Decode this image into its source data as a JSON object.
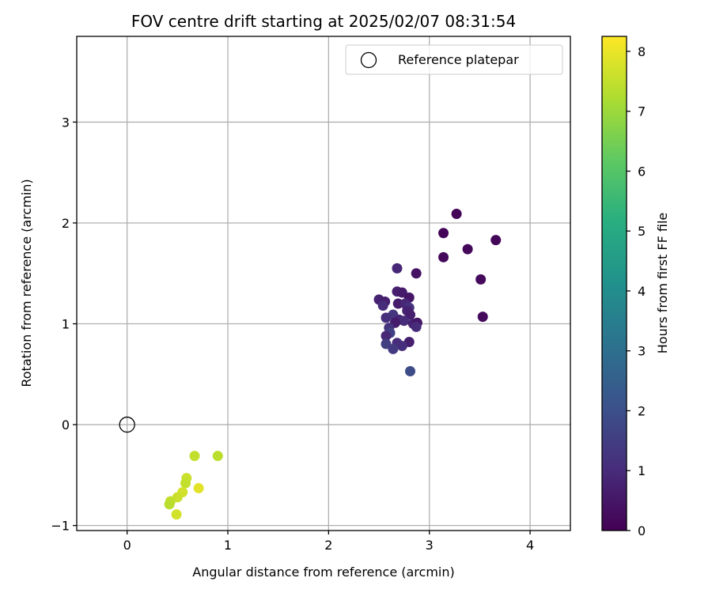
{
  "chart_data": {
    "type": "scatter",
    "title": "FOV centre drift starting at 2025/02/07 08:31:54",
    "xlabel": "Angular distance from reference (arcmin)",
    "ylabel": "Rotation from reference (arcmin)",
    "xlim": [
      -0.5,
      4.4
    ],
    "ylim": [
      -1.05,
      3.85
    ],
    "xticks": [
      0,
      1,
      2,
      3,
      4
    ],
    "yticks": [
      -1,
      0,
      1,
      2,
      3
    ],
    "xtick_labels": [
      "0",
      "1",
      "2",
      "3",
      "4"
    ],
    "ytick_labels": [
      "−1",
      "0",
      "1",
      "2",
      "3"
    ],
    "grid": true,
    "legend": {
      "placement": "top-right",
      "entries": [
        "Reference platepar"
      ]
    },
    "colorbar": {
      "label": "Hours from first FF file",
      "range": [
        0,
        8.25
      ],
      "ticks": [
        0,
        1,
        2,
        3,
        4,
        5,
        6,
        7,
        8
      ],
      "tick_labels": [
        "0",
        "1",
        "2",
        "3",
        "4",
        "5",
        "6",
        "7",
        "8"
      ],
      "colormap": "viridis"
    },
    "reference_point": {
      "name": "Reference platepar",
      "x": 0,
      "y": 0
    },
    "points": [
      {
        "x": 3.27,
        "y": 2.09,
        "hours": 0.05
      },
      {
        "x": 3.14,
        "y": 1.9,
        "hours": 0.1
      },
      {
        "x": 3.66,
        "y": 1.83,
        "hours": 0.12
      },
      {
        "x": 3.38,
        "y": 1.74,
        "hours": 0.15
      },
      {
        "x": 3.14,
        "y": 1.66,
        "hours": 0.18
      },
      {
        "x": 3.51,
        "y": 1.44,
        "hours": 0.2
      },
      {
        "x": 3.53,
        "y": 1.07,
        "hours": 0.22
      },
      {
        "x": 2.87,
        "y": 1.5,
        "hours": 0.4
      },
      {
        "x": 2.68,
        "y": 1.55,
        "hours": 0.9
      },
      {
        "x": 2.68,
        "y": 1.32,
        "hours": 0.7
      },
      {
        "x": 2.73,
        "y": 1.31,
        "hours": 0.6
      },
      {
        "x": 2.5,
        "y": 1.24,
        "hours": 0.8
      },
      {
        "x": 2.56,
        "y": 1.22,
        "hours": 0.7
      },
      {
        "x": 2.54,
        "y": 1.18,
        "hours": 1.0
      },
      {
        "x": 2.8,
        "y": 1.26,
        "hours": 0.5
      },
      {
        "x": 2.69,
        "y": 1.2,
        "hours": 0.6
      },
      {
        "x": 2.76,
        "y": 1.2,
        "hours": 0.9
      },
      {
        "x": 2.8,
        "y": 1.16,
        "hours": 1.2
      },
      {
        "x": 2.78,
        "y": 1.13,
        "hours": 0.8
      },
      {
        "x": 2.64,
        "y": 1.09,
        "hours": 1.3
      },
      {
        "x": 2.57,
        "y": 1.06,
        "hours": 1.1
      },
      {
        "x": 2.81,
        "y": 1.09,
        "hours": 0.7
      },
      {
        "x": 2.7,
        "y": 1.04,
        "hours": 0.9
      },
      {
        "x": 2.75,
        "y": 1.03,
        "hours": 1.0
      },
      {
        "x": 2.66,
        "y": 1.01,
        "hours": 0.6
      },
      {
        "x": 2.84,
        "y": 1.0,
        "hours": 0.8
      },
      {
        "x": 2.88,
        "y": 1.01,
        "hours": 0.5
      },
      {
        "x": 2.87,
        "y": 0.97,
        "hours": 1.0
      },
      {
        "x": 2.6,
        "y": 0.96,
        "hours": 1.2
      },
      {
        "x": 2.61,
        "y": 0.91,
        "hours": 1.6
      },
      {
        "x": 2.57,
        "y": 0.88,
        "hours": 0.9
      },
      {
        "x": 2.57,
        "y": 0.8,
        "hours": 1.5
      },
      {
        "x": 2.68,
        "y": 0.81,
        "hours": 1.0
      },
      {
        "x": 2.8,
        "y": 0.82,
        "hours": 0.7
      },
      {
        "x": 2.73,
        "y": 0.78,
        "hours": 1.1
      },
      {
        "x": 2.64,
        "y": 0.75,
        "hours": 1.4
      },
      {
        "x": 2.81,
        "y": 0.53,
        "hours": 1.9
      },
      {
        "x": 0.67,
        "y": -0.31,
        "hours": 7.5
      },
      {
        "x": 0.9,
        "y": -0.31,
        "hours": 7.4
      },
      {
        "x": 0.59,
        "y": -0.53,
        "hours": 7.6
      },
      {
        "x": 0.58,
        "y": -0.58,
        "hours": 7.5
      },
      {
        "x": 0.71,
        "y": -0.63,
        "hours": 7.9
      },
      {
        "x": 0.55,
        "y": -0.67,
        "hours": 7.7
      },
      {
        "x": 0.5,
        "y": -0.72,
        "hours": 7.6
      },
      {
        "x": 0.43,
        "y": -0.76,
        "hours": 7.5
      },
      {
        "x": 0.42,
        "y": -0.79,
        "hours": 7.4
      },
      {
        "x": 0.49,
        "y": -0.89,
        "hours": 7.7
      }
    ]
  }
}
